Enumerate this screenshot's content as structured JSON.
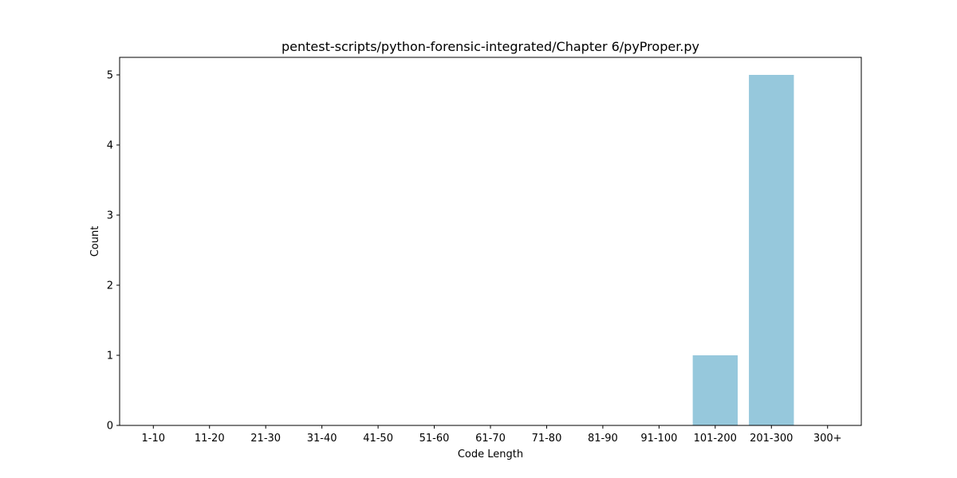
{
  "chart_data": {
    "type": "bar",
    "title": "pentest-scripts/python-forensic-integrated/Chapter 6/pyProper.py",
    "xlabel": "Code Length",
    "ylabel": "Count",
    "categories": [
      "1-10",
      "11-20",
      "21-30",
      "31-40",
      "41-50",
      "51-60",
      "61-70",
      "71-80",
      "81-90",
      "91-100",
      "101-200",
      "201-300",
      "300+"
    ],
    "values": [
      0,
      0,
      0,
      0,
      0,
      0,
      0,
      0,
      0,
      0,
      1,
      5,
      0
    ],
    "ylim": [
      0,
      5.25
    ],
    "yticks": [
      0,
      1,
      2,
      3,
      4,
      5
    ],
    "bar_color": "#96c8dc",
    "grid": false,
    "legend": "none"
  }
}
